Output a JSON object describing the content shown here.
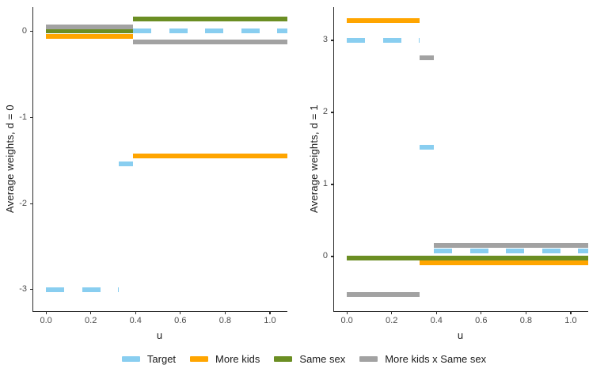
{
  "figure": {
    "background": "#ffffff",
    "legend": {
      "items": [
        {
          "label": "Target",
          "color": "#89CEF0",
          "linetype": "dashed"
        },
        {
          "label": "More kids",
          "color": "#FFA500",
          "linetype": "solid"
        },
        {
          "label": "Same sex",
          "color": "#6B8E23",
          "linetype": "solid"
        },
        {
          "label": "More kids x Same sex",
          "color": "#A2A2A2",
          "linetype": "solid"
        }
      ]
    }
  },
  "chart_data": [
    {
      "type": "line",
      "panel": "d = 0",
      "title": "",
      "xlabel": "u",
      "ylabel": "Average weights, d = 0",
      "xlim": [
        -0.057,
        1.078
      ],
      "ylim": [
        -3.25,
        0.28
      ],
      "grid": false,
      "legend_position": "bottom",
      "xticks": [
        {
          "v": 0.0,
          "label": "0.0"
        },
        {
          "v": 0.2,
          "label": "0.2"
        },
        {
          "v": 0.4,
          "label": "0.4"
        },
        {
          "v": 0.6,
          "label": "0.6"
        },
        {
          "v": 0.8,
          "label": "0.8"
        },
        {
          "v": 1.0,
          "label": "1.0"
        }
      ],
      "yticks": [
        {
          "v": 0,
          "label": "0"
        },
        {
          "v": -1,
          "label": "-1"
        },
        {
          "v": -2,
          "label": "-2"
        },
        {
          "v": -3,
          "label": "-3"
        }
      ],
      "series": [
        {
          "name": "Target",
          "color": "#89CEF0",
          "linetype": "dashed",
          "segments": [
            {
              "u": [
                0.0,
                0.325
              ],
              "w": -3.0
            },
            {
              "u": [
                0.325,
                0.39
              ],
              "w": -1.54
            },
            {
              "u": [
                0.39,
                1.078
              ],
              "w": 0.0
            }
          ]
        },
        {
          "name": "More kids",
          "color": "#FFA500",
          "linetype": "solid",
          "segments": [
            {
              "u": [
                0.0,
                0.39
              ],
              "w": -0.06
            },
            {
              "u": [
                0.39,
                1.078
              ],
              "w": -1.45
            }
          ]
        },
        {
          "name": "Same sex",
          "color": "#6B8E23",
          "linetype": "solid",
          "segments": [
            {
              "u": [
                0.0,
                0.39
              ],
              "w": 0.0
            },
            {
              "u": [
                0.39,
                1.078
              ],
              "w": 0.14
            }
          ]
        },
        {
          "name": "More kids x Same sex",
          "color": "#A2A2A2",
          "linetype": "solid",
          "segments": [
            {
              "u": [
                0.0,
                0.39
              ],
              "w": 0.05
            },
            {
              "u": [
                0.39,
                1.078
              ],
              "w": -0.12
            }
          ]
        }
      ]
    },
    {
      "type": "line",
      "panel": "d = 1",
      "title": "",
      "xlabel": "u",
      "ylabel": "Average weights, d = 1",
      "xlim": [
        -0.057,
        1.078
      ],
      "ylim": [
        -0.76,
        3.46
      ],
      "grid": false,
      "legend_position": "bottom",
      "xticks": [
        {
          "v": 0.0,
          "label": "0.0"
        },
        {
          "v": 0.2,
          "label": "0.2"
        },
        {
          "v": 0.4,
          "label": "0.4"
        },
        {
          "v": 0.6,
          "label": "0.6"
        },
        {
          "v": 0.8,
          "label": "0.8"
        },
        {
          "v": 1.0,
          "label": "1.0"
        }
      ],
      "yticks": [
        {
          "v": 3,
          "label": "3"
        },
        {
          "v": 2,
          "label": "2"
        },
        {
          "v": 1,
          "label": "1"
        },
        {
          "v": 0,
          "label": "0"
        }
      ],
      "series": [
        {
          "name": "Target",
          "color": "#89CEF0",
          "linetype": "dashed",
          "segments": [
            {
              "u": [
                0.0,
                0.325
              ],
              "w": 3.0
            },
            {
              "u": [
                0.325,
                0.39
              ],
              "w": 1.52
            },
            {
              "u": [
                0.39,
                1.078
              ],
              "w": 0.07
            }
          ]
        },
        {
          "name": "More kids",
          "color": "#FFA500",
          "linetype": "solid",
          "segments": [
            {
              "u": [
                0.0,
                0.325
              ],
              "w": 3.27
            },
            {
              "u": [
                0.325,
                1.078
              ],
              "w": -0.09
            }
          ]
        },
        {
          "name": "Same sex",
          "color": "#6B8E23",
          "linetype": "solid",
          "segments": [
            {
              "u": [
                0.0,
                1.078
              ],
              "w": -0.02
            }
          ]
        },
        {
          "name": "More kids x Same sex",
          "color": "#A2A2A2",
          "linetype": "solid",
          "segments": [
            {
              "u": [
                0.0,
                0.325
              ],
              "w": -0.53
            },
            {
              "u": [
                0.325,
                0.39
              ],
              "w": 2.76
            },
            {
              "u": [
                0.39,
                1.078
              ],
              "w": 0.15
            }
          ]
        }
      ]
    }
  ]
}
